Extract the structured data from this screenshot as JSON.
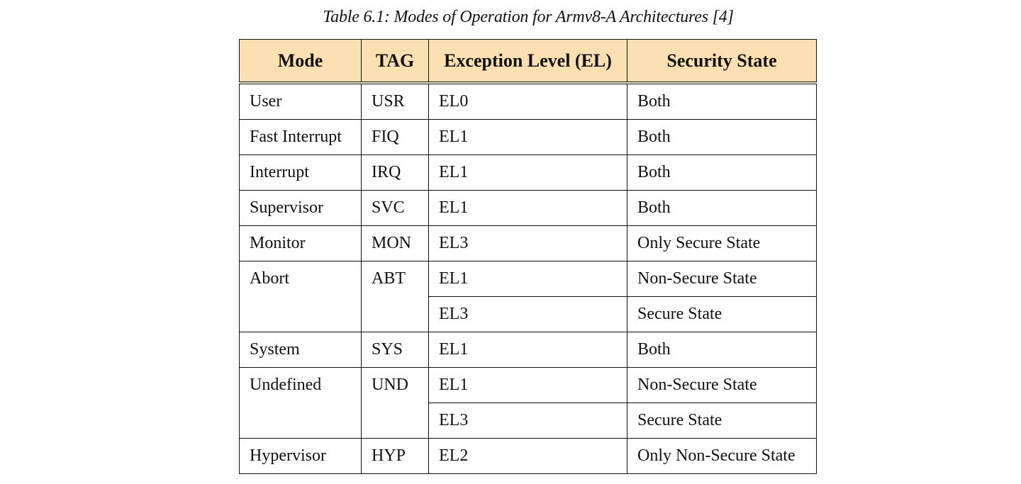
{
  "caption": "Table 6.1: Modes of Operation for Armv8-A Architectures [4]",
  "headers": {
    "mode": "Mode",
    "tag": "TAG",
    "el": "Exception Level (EL)",
    "security": "Security State"
  },
  "rows": [
    {
      "mode": "User",
      "tag": "USR",
      "el": "EL0",
      "security": "Both"
    },
    {
      "mode": "Fast Interrupt",
      "tag": "FIQ",
      "el": "EL1",
      "security": "Both"
    },
    {
      "mode": "Interrupt",
      "tag": "IRQ",
      "el": "EL1",
      "security": "Both"
    },
    {
      "mode": "Supervisor",
      "tag": "SVC",
      "el": "EL1",
      "security": "Both"
    },
    {
      "mode": "Monitor",
      "tag": "MON",
      "el": "EL3",
      "security": "Only Secure State"
    },
    {
      "mode": "Abort",
      "tag": "ABT",
      "el": "EL1",
      "security": "Non-Secure State"
    },
    {
      "el": "EL3",
      "security": "Secure State"
    },
    {
      "mode": "System",
      "tag": "SYS",
      "el": "EL1",
      "security": "Both"
    },
    {
      "mode": "Undefined",
      "tag": "UND",
      "el": "EL1",
      "security": "Non-Secure State"
    },
    {
      "el": "EL3",
      "security": "Secure State"
    },
    {
      "mode": "Hypervisor",
      "tag": "HYP",
      "el": "EL2",
      "security": "Only Non-Secure State"
    }
  ],
  "colors": {
    "header_background": "#fde0b2",
    "border": "#111111"
  }
}
